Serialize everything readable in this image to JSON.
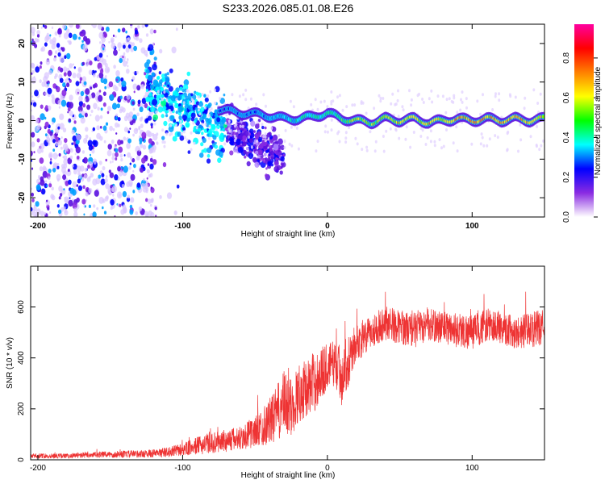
{
  "title": "S233.2026.085.01.08.E26",
  "chart_data": [
    {
      "type": "heatmap",
      "xlabel": "Height of straight line (km)",
      "ylabel": "Frequency (Hz)",
      "xlim": [
        -205,
        150
      ],
      "ylim": [
        -25,
        25
      ],
      "xticks": [
        -200,
        -100,
        0,
        100
      ],
      "yticks": [
        -20,
        -10,
        0,
        10,
        20
      ],
      "colorbar": {
        "label": "Normalized spectral amplitude",
        "range": [
          0.0,
          0.97
        ],
        "ticks": [
          0.0,
          0.2,
          0.4,
          0.6,
          0.8
        ],
        "tick_labels": [
          "0.0",
          "0.2",
          "0.4",
          "0.6",
          "0.8"
        ],
        "colors": [
          "#ffffff",
          "#8a2be2",
          "#0000ff",
          "#00ffff",
          "#00ff00",
          "#ffff00",
          "#ff8000",
          "#ff0000",
          "#ff00a0"
        ]
      },
      "noise_region": {
        "x_range": [
          -205,
          -118
        ],
        "freq_range": [
          -25,
          25
        ],
        "amplitude": 0.1
      },
      "scatter_region": {
        "x_range": [
          -125,
          -30
        ],
        "freq_center": [
          8,
          -10
        ],
        "amplitude": 0.15
      },
      "signal_line": {
        "x": [
          -75,
          -60,
          -45,
          -30,
          -20,
          -10,
          0,
          10,
          20,
          30,
          40,
          50,
          60,
          70,
          80,
          90,
          100,
          110,
          120,
          130,
          140,
          150
        ],
        "freq": [
          3.0,
          2.0,
          1.5,
          0.5,
          0.5,
          1.0,
          2.0,
          0.5,
          0.0,
          -0.5,
          0.5,
          0.0,
          0.5,
          -0.5,
          0.0,
          0.5,
          0.0,
          0.5,
          0.0,
          0.5,
          0.0,
          0.5
        ],
        "amplitude": [
          0.35,
          0.4,
          0.45,
          0.5,
          0.6,
          0.6,
          0.65,
          0.7,
          0.75,
          0.75,
          0.8,
          0.85,
          0.85,
          0.85,
          0.85,
          0.9,
          0.9,
          0.9,
          0.9,
          0.9,
          0.88,
          0.85
        ]
      }
    },
    {
      "type": "line",
      "xlabel": "Height of straight line (km)",
      "ylabel": "SNR (10 * v/v)",
      "xlim": [
        -205,
        150
      ],
      "ylim": [
        0,
        760
      ],
      "xticks": [
        -200,
        -100,
        0,
        100
      ],
      "yticks": [
        0,
        200,
        400,
        600
      ],
      "series": [
        {
          "name": "SNR",
          "color": "#ee3333",
          "x": [
            -205,
            -180,
            -160,
            -140,
            -120,
            -110,
            -100,
            -90,
            -80,
            -70,
            -60,
            -50,
            -40,
            -35,
            -30,
            -25,
            -20,
            -15,
            -10,
            -5,
            0,
            5,
            10,
            15,
            20,
            25,
            30,
            35,
            40,
            50,
            60,
            70,
            80,
            90,
            100,
            110,
            120,
            130,
            140,
            150
          ],
          "y": [
            15,
            15,
            20,
            22,
            25,
            30,
            40,
            55,
            65,
            75,
            85,
            110,
            150,
            180,
            220,
            200,
            260,
            280,
            300,
            330,
            370,
            380,
            330,
            400,
            460,
            470,
            500,
            520,
            540,
            520,
            510,
            530,
            520,
            510,
            500,
            530,
            520,
            500,
            510,
            520
          ],
          "spread": [
            10,
            10,
            12,
            14,
            16,
            20,
            25,
            35,
            40,
            45,
            50,
            60,
            90,
            110,
            130,
            120,
            120,
            110,
            120,
            110,
            90,
            90,
            120,
            100,
            70,
            70,
            65,
            65,
            70,
            65,
            70,
            65,
            65,
            70,
            70,
            65,
            65,
            65,
            70,
            70
          ]
        }
      ]
    }
  ]
}
